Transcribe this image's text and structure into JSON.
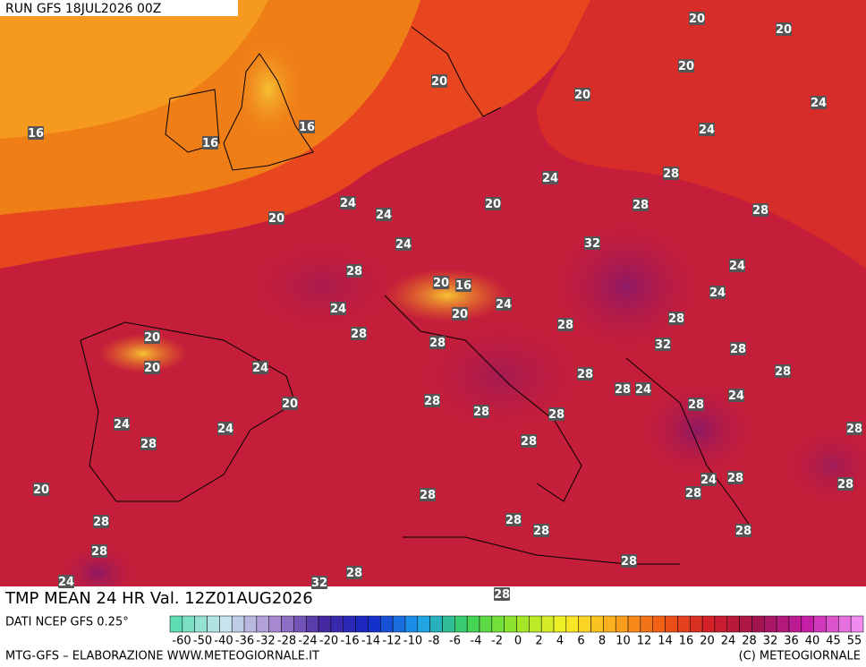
{
  "header": {
    "run": "RUN GFS 18JUL2026 00Z"
  },
  "map": {
    "contour_labels": [
      16,
      16,
      16,
      20,
      20,
      20,
      20,
      20,
      24,
      24,
      28,
      24,
      20,
      28,
      28,
      24,
      24,
      20,
      24,
      32,
      24,
      28,
      20,
      16,
      24,
      20,
      24,
      24,
      28,
      28,
      20,
      28,
      28,
      32,
      28,
      20,
      24,
      28,
      28,
      24,
      28,
      24,
      20,
      28,
      28,
      28,
      28,
      24,
      24,
      28,
      28,
      28,
      24,
      28,
      28,
      20,
      28,
      28,
      28,
      28,
      28,
      28,
      28,
      28,
      24,
      32,
      28,
      28
    ]
  },
  "title": "TMP MEAN 24 HR Val. 12Z01AUG2026",
  "legend": {
    "source": "DATI NCEP GFS 0.25°",
    "ticks": [
      -60,
      -50,
      -40,
      -36,
      -32,
      -28,
      -24,
      -20,
      -16,
      -14,
      -12,
      -10,
      -8,
      -6,
      -4,
      -2,
      0,
      2,
      4,
      6,
      8,
      10,
      12,
      14,
      16,
      20,
      24,
      28,
      32,
      36,
      40,
      45,
      55
    ]
  },
  "footer": {
    "left": "MTG-GFS – ELABORAZIONE WWW.METEOGIORNALE.IT",
    "right": "(C) METEOGIORNALE"
  }
}
